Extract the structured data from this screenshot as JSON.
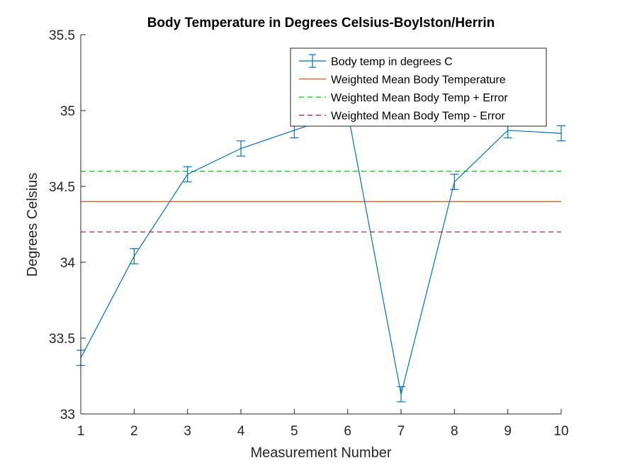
{
  "chart_data": {
    "type": "line",
    "title": "Body Temperature in Degrees Celsius-Boylston/Herrin",
    "xlabel": "Measurement Number",
    "ylabel": "Degrees Celsius",
    "xlim": [
      1,
      10
    ],
    "ylim": [
      33,
      35.5
    ],
    "xticks": [
      1,
      2,
      3,
      4,
      5,
      6,
      7,
      8,
      9,
      10
    ],
    "xtick_labels": [
      "1",
      "2",
      "3",
      "4",
      "5",
      "6",
      "7",
      "8",
      "9",
      "10"
    ],
    "yticks": [
      33,
      33.5,
      34,
      34.5,
      35,
      35.5
    ],
    "ytick_labels": [
      "33",
      "33.5",
      "34",
      "34.5",
      "35",
      "35.5"
    ],
    "grid": false,
    "legend_position": "top-right",
    "series": [
      {
        "name": "Body temp in degrees C",
        "kind": "errorbar",
        "color": "#0072BD",
        "x": [
          1,
          2,
          3,
          4,
          5,
          6,
          7,
          8,
          9,
          10
        ],
        "y": [
          33.37,
          34.04,
          34.58,
          34.75,
          34.87,
          34.99,
          33.13,
          34.53,
          34.87,
          34.85
        ],
        "error": [
          0.05,
          0.05,
          0.05,
          0.05,
          0.05,
          0.05,
          0.05,
          0.05,
          0.05,
          0.05
        ]
      },
      {
        "name": "Weighted Mean Body Temperature",
        "kind": "hline",
        "color": "#D95319",
        "dash": "solid",
        "y": 34.4
      },
      {
        "name": "Weighted Mean Body Temp + Error",
        "kind": "hline",
        "color": "#00D000",
        "dash": "dashed",
        "y": 34.6
      },
      {
        "name": "Weighted Mean Body Temp - Error",
        "kind": "hline",
        "color": "#A2142F",
        "dash": "dashed",
        "y": 34.2
      }
    ]
  }
}
